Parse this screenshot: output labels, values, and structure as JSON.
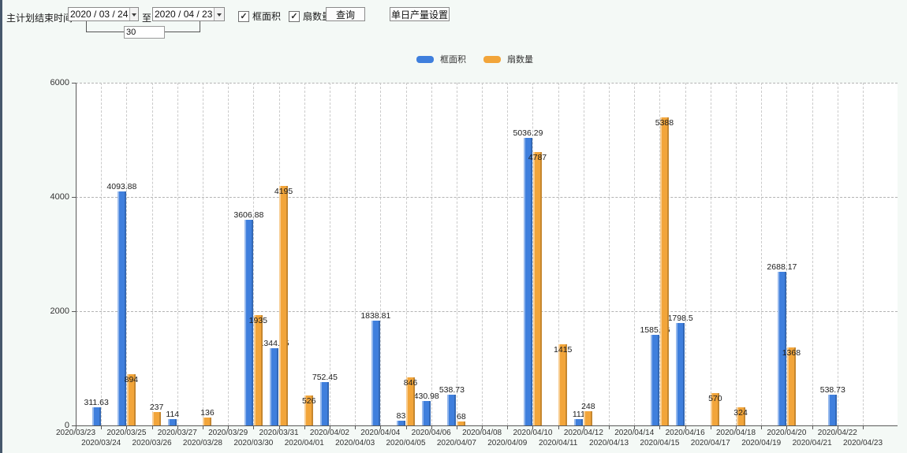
{
  "toolbar": {
    "label_start": "主计划结束时间:",
    "date_start": "2020 / 03 / 24",
    "label_to": "至:",
    "date_end": "2020 / 04 / 23",
    "interval_days": "30",
    "checkbox_area": "框面积",
    "checkbox_fan": "扇数量",
    "query_button": "查询",
    "daily_output_button": "单日产量设置"
  },
  "legend": {
    "series1": "框面积",
    "series2": "扇数量"
  },
  "colors": {
    "series1": "#3f7fdd",
    "series2": "#f2a53a",
    "grid": "#b3b3b3",
    "axis": "#5a5a5a"
  },
  "chart_data": {
    "type": "bar",
    "title": "",
    "xlabel": "",
    "ylabel": "",
    "ylim": [
      0,
      6000
    ],
    "yticks": [
      0,
      2000,
      4000,
      6000
    ],
    "grid": true,
    "legend_position": "top",
    "categories": [
      "2020/03/23",
      "2020/03/24",
      "2020/03/25",
      "2020/03/26",
      "2020/03/27",
      "2020/03/28",
      "2020/03/29",
      "2020/03/30",
      "2020/03/31",
      "2020/04/01",
      "2020/04/02",
      "2020/04/03",
      "2020/04/04",
      "2020/04/05",
      "2020/04/06",
      "2020/04/07",
      "2020/04/08",
      "2020/04/09",
      "2020/04/10",
      "2020/04/11",
      "2020/04/12",
      "2020/04/13",
      "2020/04/14",
      "2020/04/15",
      "2020/04/16",
      "2020/04/17",
      "2020/04/18",
      "2020/04/19",
      "2020/04/20",
      "2020/04/21",
      "2020/04/22",
      "2020/04/23"
    ],
    "series": [
      {
        "name": "框面积",
        "color": "#3f7fdd",
        "values": [
          null,
          311.63,
          4093.88,
          null,
          114,
          null,
          null,
          3606.88,
          1344.95,
          null,
          752.45,
          null,
          1838.81,
          83,
          430.98,
          538.73,
          null,
          null,
          5036.29,
          null,
          111,
          null,
          null,
          1585.96,
          1798.5,
          null,
          null,
          null,
          2688.17,
          null,
          538.73,
          null
        ]
      },
      {
        "name": "扇数量",
        "color": "#f2a53a",
        "values": [
          null,
          null,
          894,
          237,
          null,
          136,
          null,
          1935,
          4195,
          526,
          null,
          null,
          null,
          846,
          null,
          68,
          null,
          null,
          4787,
          1415,
          248,
          null,
          null,
          5388,
          null,
          570,
          324,
          null,
          1368,
          null,
          null,
          null
        ]
      }
    ]
  }
}
